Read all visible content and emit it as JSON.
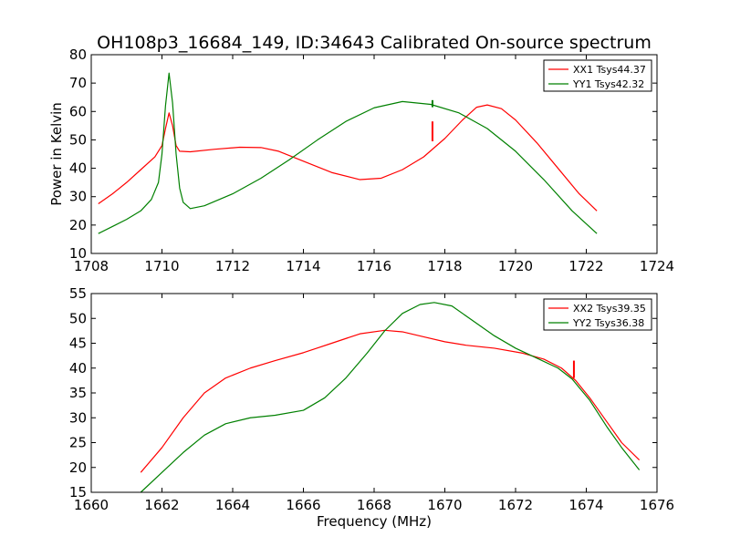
{
  "chart_data": {
    "title": "OH108p3_16684_149, ID:34643 Calibrated On-source spectrum",
    "ylabel": "Power in Kelvin",
    "xlabel": "Frequency (MHz)",
    "panels": [
      {
        "type": "line",
        "xlim": [
          1708,
          1724
        ],
        "ylim": [
          10,
          80
        ],
        "xticks": [
          "1708",
          "1710",
          "1712",
          "1714",
          "1716",
          "1718",
          "1720",
          "1722",
          "1724"
        ],
        "yticks": [
          "10",
          "20",
          "30",
          "40",
          "50",
          "60",
          "70",
          "80"
        ],
        "legend_position": "top-right",
        "series": [
          {
            "name": "XX1 Tsys44.37",
            "color": "#ff0000",
            "points": [
              [
                1708.2,
                27.5
              ],
              [
                1708.6,
                31
              ],
              [
                1709.0,
                35
              ],
              [
                1709.4,
                39.5
              ],
              [
                1709.8,
                44
              ],
              [
                1710.0,
                48
              ],
              [
                1710.1,
                54
              ],
              [
                1710.2,
                59.5
              ],
              [
                1710.3,
                55
              ],
              [
                1710.4,
                48
              ],
              [
                1710.5,
                46
              ],
              [
                1710.8,
                45.8
              ],
              [
                1711.5,
                46.7
              ],
              [
                1712.2,
                47.4
              ],
              [
                1712.8,
                47.3
              ],
              [
                1713.3,
                46
              ],
              [
                1714.0,
                42.5
              ],
              [
                1714.8,
                38.5
              ],
              [
                1715.6,
                36
              ],
              [
                1716.2,
                36.5
              ],
              [
                1716.8,
                39.5
              ],
              [
                1717.4,
                44
              ],
              [
                1718.0,
                50.5
              ],
              [
                1718.5,
                57
              ],
              [
                1718.9,
                61.5
              ],
              [
                1719.2,
                62.3
              ],
              [
                1719.6,
                61
              ],
              [
                1720.0,
                57
              ],
              [
                1720.6,
                49
              ],
              [
                1721.2,
                40
              ],
              [
                1721.8,
                31
              ],
              [
                1722.3,
                25
              ]
            ]
          },
          {
            "name": "YY1 Tsys42.32",
            "color": "#008000",
            "points": [
              [
                1708.2,
                17
              ],
              [
                1708.6,
                19.5
              ],
              [
                1709.0,
                22
              ],
              [
                1709.4,
                25
              ],
              [
                1709.7,
                29
              ],
              [
                1709.9,
                35
              ],
              [
                1710.0,
                45
              ],
              [
                1710.1,
                62
              ],
              [
                1710.2,
                73.5
              ],
              [
                1710.3,
                63
              ],
              [
                1710.4,
                45
              ],
              [
                1710.5,
                33
              ],
              [
                1710.6,
                28
              ],
              [
                1710.8,
                25.8
              ],
              [
                1711.2,
                26.8
              ],
              [
                1712.0,
                31
              ],
              [
                1712.8,
                36.5
              ],
              [
                1713.6,
                43
              ],
              [
                1714.4,
                50
              ],
              [
                1715.2,
                56.5
              ],
              [
                1716.0,
                61.3
              ],
              [
                1716.8,
                63.5
              ],
              [
                1717.6,
                62.5
              ],
              [
                1718.4,
                59.5
              ],
              [
                1719.2,
                54
              ],
              [
                1720.0,
                46
              ],
              [
                1720.8,
                36
              ],
              [
                1721.6,
                25
              ],
              [
                1722.3,
                17
              ]
            ]
          }
        ],
        "spikes": [
          {
            "color": "#ff0000",
            "x": 1717.65,
            "y_low": 49.5,
            "y_high": 56.5
          },
          {
            "color": "#008000",
            "x": 1717.65,
            "y_low": 61.5,
            "y_high": 64
          }
        ]
      },
      {
        "type": "line",
        "xlim": [
          1660,
          1676
        ],
        "ylim": [
          15,
          55
        ],
        "xticks": [
          "1660",
          "1662",
          "1664",
          "1666",
          "1668",
          "1670",
          "1672",
          "1674",
          "1676"
        ],
        "yticks": [
          "15",
          "20",
          "25",
          "30",
          "35",
          "40",
          "45",
          "50",
          "55"
        ],
        "legend_position": "top-right",
        "series": [
          {
            "name": "XX2 Tsys39.35",
            "color": "#ff0000",
            "points": [
              [
                1661.4,
                19
              ],
              [
                1662.0,
                24
              ],
              [
                1662.6,
                30
              ],
              [
                1663.2,
                35
              ],
              [
                1663.8,
                38
              ],
              [
                1664.5,
                40
              ],
              [
                1665.2,
                41.5
              ],
              [
                1666.0,
                43.1
              ],
              [
                1666.8,
                45
              ],
              [
                1667.6,
                46.9
              ],
              [
                1668.3,
                47.6
              ],
              [
                1668.8,
                47.3
              ],
              [
                1669.4,
                46.3
              ],
              [
                1670.0,
                45.3
              ],
              [
                1670.6,
                44.6
              ],
              [
                1671.4,
                44
              ],
              [
                1672.2,
                43
              ],
              [
                1672.8,
                41.8
              ],
              [
                1673.3,
                40
              ],
              [
                1673.7,
                37.5
              ],
              [
                1674.1,
                34
              ],
              [
                1674.6,
                29
              ],
              [
                1675.0,
                25
              ],
              [
                1675.5,
                21.5
              ]
            ]
          },
          {
            "name": "YY2 Tsys36.38",
            "color": "#008000",
            "points": [
              [
                1661.4,
                15
              ],
              [
                1662.0,
                19
              ],
              [
                1662.6,
                23
              ],
              [
                1663.2,
                26.5
              ],
              [
                1663.8,
                28.8
              ],
              [
                1664.5,
                30
              ],
              [
                1665.2,
                30.5
              ],
              [
                1666.0,
                31.5
              ],
              [
                1666.6,
                34
              ],
              [
                1667.2,
                38
              ],
              [
                1667.8,
                43
              ],
              [
                1668.3,
                47.5
              ],
              [
                1668.8,
                51
              ],
              [
                1669.3,
                52.8
              ],
              [
                1669.7,
                53.2
              ],
              [
                1670.2,
                52.5
              ],
              [
                1670.8,
                49.5
              ],
              [
                1671.4,
                46.5
              ],
              [
                1672.0,
                44
              ],
              [
                1672.6,
                42
              ],
              [
                1673.2,
                40
              ],
              [
                1673.6,
                37.8
              ],
              [
                1674.1,
                33.5
              ],
              [
                1674.6,
                28
              ],
              [
                1675.0,
                24
              ],
              [
                1675.5,
                19.5
              ]
            ]
          }
        ],
        "spikes": [
          {
            "color": "#ff0000",
            "x": 1673.65,
            "y_low": 38,
            "y_high": 41.5
          }
        ]
      }
    ]
  }
}
